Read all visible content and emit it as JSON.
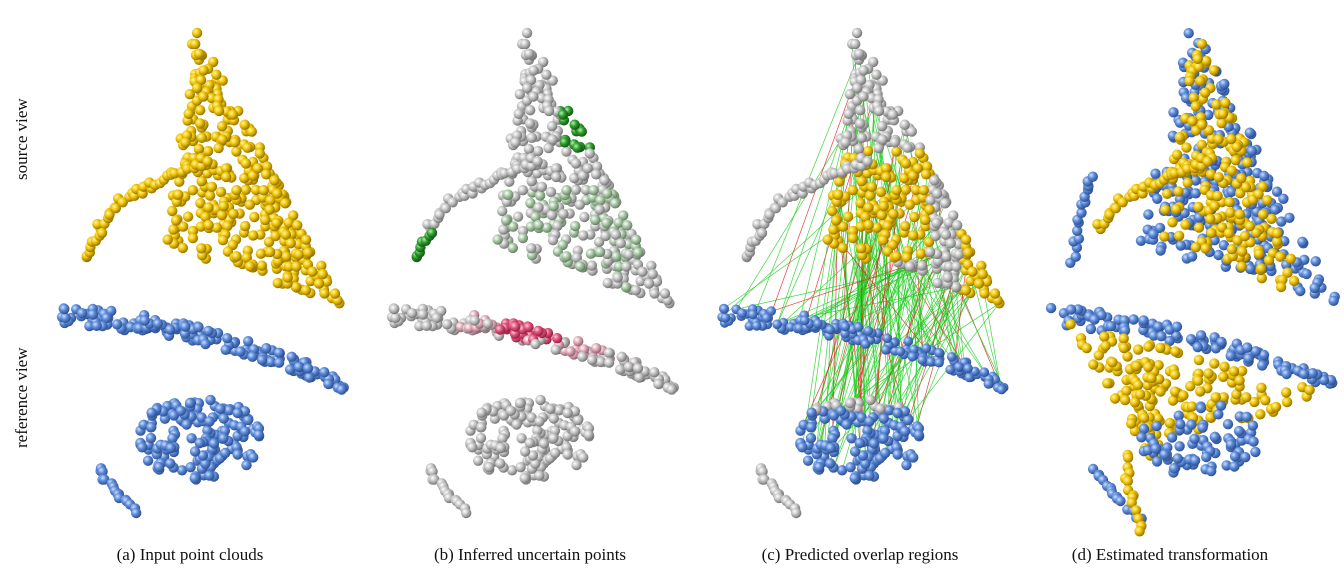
{
  "row_labels": {
    "source": "source view",
    "reference": "reference view"
  },
  "panels": [
    {
      "id": "a",
      "caption": "(a) Input point clouds"
    },
    {
      "id": "b",
      "caption": "(b) Inferred uncertain points"
    },
    {
      "id": "c",
      "caption": "(c) Predicted overlap regions"
    },
    {
      "id": "d",
      "caption": "(d) Estimated transformation"
    }
  ],
  "colors": {
    "source": "#f0c400",
    "reference": "#5b8ad8",
    "neutral": "#c4c4c4",
    "uncertain_source": "#2e9e2e",
    "uncertain_reference": "#e0507a",
    "correct_match": "#22cc22",
    "wrong_match": "#e02020"
  }
}
